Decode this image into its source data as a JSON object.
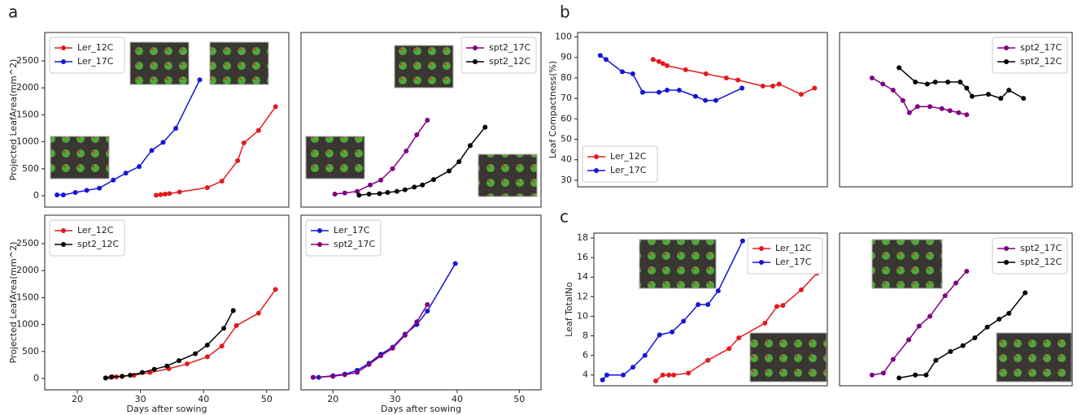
{
  "panel_labels": [
    "a",
    "b",
    "c"
  ],
  "chart_data": [
    {
      "type": "line",
      "ylabel": "Projected LeafArea(mm^2)",
      "xlim": [
        14.85,
        53.5
      ],
      "ylim": [
        -211,
        3027
      ],
      "yticks": [
        0,
        500,
        1000,
        1500,
        2000,
        2500
      ],
      "legend": "upper left",
      "series": [
        {
          "name": "Ler_12C",
          "color": "#e31a1c",
          "x": [
            32.5,
            33.2,
            33.9,
            34.6,
            36.2,
            40.6,
            42.9,
            45.4,
            46.4,
            48.7,
            51.4
          ],
          "values": [
            10,
            20,
            30,
            40,
            70,
            150,
            270,
            650,
            980,
            1210,
            1650
          ]
        },
        {
          "name": "Ler_17C",
          "color": "#1515d8",
          "x": [
            16.8,
            17.8,
            19.7,
            21.5,
            23.5,
            25.7,
            27.7,
            29.8,
            31.8,
            33.6,
            35.6,
            39.4
          ],
          "values": [
            15,
            15,
            60,
            100,
            140,
            290,
            420,
            540,
            840,
            990,
            1250,
            2150
          ]
        }
      ]
    },
    {
      "type": "line",
      "xlim": [
        14.85,
        53.5
      ],
      "ylim": [
        -211,
        3027
      ],
      "legend": "upper right",
      "series": [
        {
          "name": "spt2_17C",
          "color": "#800080",
          "x": [
            20.3,
            21.9,
            23.9,
            26.0,
            27.7,
            29.6,
            31.8,
            33.5,
            35.2
          ],
          "values": [
            30,
            50,
            80,
            200,
            290,
            500,
            830,
            1130,
            1400
          ]
        },
        {
          "name": "spt2_12C",
          "color": "#000000",
          "x": [
            24.2,
            25.8,
            27.5,
            28.8,
            30.3,
            31.6,
            33.1,
            34.4,
            36.2,
            38.7,
            40.3,
            42.1,
            44.5
          ],
          "values": [
            10,
            30,
            40,
            60,
            80,
            110,
            160,
            200,
            300,
            460,
            630,
            930,
            1270
          ]
        }
      ]
    },
    {
      "type": "line",
      "ylabel": "Projected LeafArea(mm^2)",
      "xlabel": "Days after sowing",
      "xlim": [
        14.85,
        53.5
      ],
      "ylim": [
        -211,
        3027
      ],
      "xticks": [
        20,
        30,
        40,
        50
      ],
      "yticks": [
        0,
        500,
        1000,
        1500,
        2000,
        2500
      ],
      "legend": "upper left",
      "series": [
        {
          "name": "Ler_12C",
          "color": "#e31a1c",
          "x": [
            24.5,
            25.3,
            26.2,
            27.1,
            29,
            31.5,
            34.5,
            37.4,
            40.6,
            42.9,
            45.2,
            48.7,
            51.4
          ],
          "values": [
            10,
            20,
            30,
            40,
            60,
            110,
            180,
            270,
            400,
            600,
            980,
            1210,
            1650
          ]
        },
        {
          "name": "spt2_12C",
          "color": "#000000",
          "x": [
            24.5,
            25.5,
            27.1,
            28.4,
            30.3,
            32.2,
            34.2,
            36.1,
            38.7,
            40.6,
            43.2,
            44.7
          ],
          "values": [
            10,
            30,
            40,
            60,
            110,
            170,
            230,
            330,
            460,
            620,
            930,
            1260
          ]
        }
      ]
    },
    {
      "type": "line",
      "xlabel": "Days after sowing",
      "xlim": [
        14.85,
        53.5
      ],
      "ylim": [
        -211,
        3027
      ],
      "xticks": [
        20,
        30,
        40,
        50
      ],
      "legend": "upper left",
      "series": [
        {
          "name": "Ler_17C",
          "color": "#1515d8",
          "x": [
            16.8,
            17.7,
            20,
            21.9,
            23.9,
            25.8,
            27.7,
            29.6,
            31.6,
            33.5,
            35.2,
            39.7
          ],
          "values": [
            20,
            20,
            50,
            80,
            150,
            280,
            450,
            580,
            820,
            1000,
            1250,
            2130
          ]
        },
        {
          "name": "spt2_17C",
          "color": "#800080",
          "x": [
            16.8,
            20,
            21.9,
            23.9,
            25.8,
            27.7,
            29.6,
            31.6,
            33.5,
            35.2
          ],
          "values": [
            20,
            40,
            70,
            110,
            260,
            420,
            560,
            800,
            1050,
            1370
          ]
        }
      ]
    },
    {
      "type": "line",
      "ylabel": "Leaf Compactness(%)",
      "xlim": [
        15,
        58
      ],
      "ylim": [
        26.8,
        102.2
      ],
      "yticks": [
        30,
        40,
        50,
        60,
        70,
        80,
        90,
        100
      ],
      "legend": "lower left",
      "series": [
        {
          "name": "Ler_12C",
          "color": "#e31a1c",
          "x": [
            28,
            29,
            29.7,
            30.4,
            33.6,
            37.1,
            40.6,
            42.6,
            46.9,
            48.6,
            49.7,
            53.5,
            55.8
          ],
          "values": [
            89,
            88,
            87,
            86,
            84,
            82,
            80,
            79,
            76,
            76,
            77,
            72,
            75
          ]
        },
        {
          "name": "Ler_17C",
          "color": "#1515d8",
          "x": [
            18.9,
            19.9,
            22.7,
            24.5,
            26.2,
            29,
            30.4,
            32.5,
            35.3,
            37,
            38.8,
            43.3
          ],
          "values": [
            91,
            89,
            83,
            82,
            73,
            73,
            74,
            74,
            71,
            69,
            69,
            75
          ]
        }
      ]
    },
    {
      "type": "line",
      "xlim": [
        15,
        58
      ],
      "ylim": [
        26.8,
        102.2
      ],
      "legend": "upper right",
      "series": [
        {
          "name": "spt2_17C",
          "color": "#800080",
          "x": [
            21,
            23,
            24.9,
            26.7,
            27.9,
            29.4,
            31.7,
            33.9,
            35.4,
            37,
            38.5
          ],
          "values": [
            80,
            77,
            74,
            69,
            63,
            66,
            66,
            65,
            64,
            63,
            62
          ]
        },
        {
          "name": "spt2_12C",
          "color": "#000000",
          "x": [
            26,
            29,
            31.2,
            32.7,
            35,
            37.3,
            38.5,
            39.5,
            42.5,
            44.8,
            46.3,
            49
          ],
          "values": [
            85,
            78,
            77,
            78,
            78,
            78,
            75,
            71,
            72,
            70,
            74,
            70
          ]
        }
      ]
    },
    {
      "type": "line",
      "ylabel": "Leaf TotalNo",
      "xlim": [
        15,
        58
      ],
      "ylim": [
        2.9,
        18.5
      ],
      "yticks": [
        4,
        6,
        8,
        10,
        12,
        14,
        16,
        18
      ],
      "legend": "upper right",
      "series": [
        {
          "name": "Ler_12C",
          "color": "#e31a1c",
          "x": [
            26.4,
            27.7,
            28.8,
            29.7,
            32.4,
            36,
            39.9,
            41.7,
            46.5,
            48.7,
            49.8,
            53.2,
            56.1
          ],
          "values": [
            3.4,
            4,
            4,
            4,
            4.2,
            5.5,
            6.7,
            7.8,
            9.3,
            11,
            11.1,
            12.7,
            14.4
          ]
        },
        {
          "name": "Ler_17C",
          "color": "#1515d8",
          "x": [
            16.6,
            17.4,
            20.4,
            22.2,
            24.4,
            27.1,
            29.4,
            31.5,
            34.2,
            36,
            37.9,
            42.4
          ],
          "values": [
            3.5,
            4,
            4,
            4.8,
            6,
            8.1,
            8.4,
            9.5,
            11.2,
            11.2,
            12.6,
            17.7
          ]
        }
      ]
    },
    {
      "type": "line",
      "xlim": [
        15,
        58
      ],
      "ylim": [
        2.9,
        18.5
      ],
      "legend": "upper right",
      "series": [
        {
          "name": "spt2_17C",
          "color": "#800080",
          "x": [
            21,
            23.1,
            24.9,
            27.8,
            29.7,
            31.7,
            34.5,
            36.5,
            38.5
          ],
          "values": [
            4,
            4.2,
            5.6,
            7.6,
            9,
            10,
            12.1,
            13.4,
            14.6
          ]
        },
        {
          "name": "spt2_12C",
          "color": "#000000",
          "x": [
            26,
            29,
            31,
            32.8,
            35.5,
            37.8,
            40,
            42.3,
            44.5,
            46.3,
            49.3
          ],
          "values": [
            3.7,
            4,
            4,
            5.5,
            6.4,
            7,
            7.8,
            8.9,
            9.7,
            10.3,
            12.4
          ]
        }
      ]
    }
  ]
}
